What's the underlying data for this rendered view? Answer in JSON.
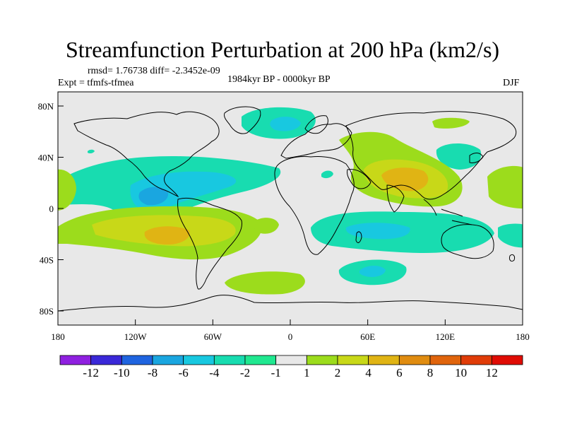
{
  "title": "Streamfunction Perturbation at 200 hPa (km2/s)",
  "stats": "rmsd= 1.76738 diff= -2.3452e-09",
  "experiment": "Expt = tfmfs-tfmea",
  "period": "1984kyr BP - 0000kyr BP",
  "season": "DJF",
  "y_ticks": [
    "80N",
    "40N",
    "0",
    "40S",
    "80S"
  ],
  "x_ticks": [
    "180",
    "120W",
    "60W",
    "0",
    "60E",
    "120E",
    "180"
  ],
  "colorbar": {
    "labels": [
      "-12",
      "-10",
      "-8",
      "-6",
      "-4",
      "-2",
      "-1",
      "1",
      "2",
      "4",
      "6",
      "8",
      "10",
      "12"
    ],
    "colors": [
      "#8f20e0",
      "#3a28d8",
      "#1f64e0",
      "#1aa6e0",
      "#18c8e0",
      "#18dcb0",
      "#20e890",
      "#e8e8e8",
      "#9cdc1c",
      "#c8d818",
      "#e0b414",
      "#e08c10",
      "#e0640c",
      "#e03c08",
      "#e00c04"
    ]
  },
  "colors": {
    "background": "#e8e8e8",
    "neg1": "#18dcb0",
    "neg2": "#18c8e0",
    "neg3": "#1aa6e0",
    "pos1": "#9cdc1c",
    "pos2": "#c8d818",
    "pos3": "#e0b414"
  }
}
